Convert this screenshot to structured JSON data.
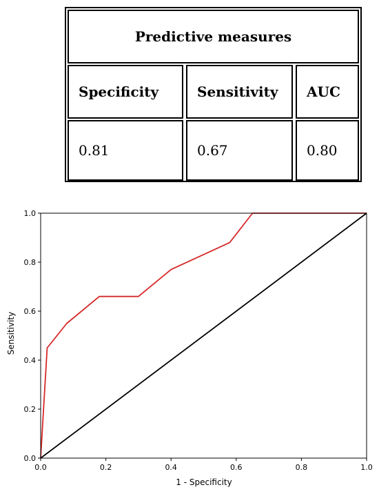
{
  "table": {
    "title": "Predictive measures",
    "headers": [
      "Specificity",
      "Sensitivity",
      "AUC"
    ],
    "values": [
      "0.81",
      "0.67",
      "0.80"
    ]
  },
  "chart_data": {
    "type": "line",
    "title": "",
    "xlabel": "1 - Specificity",
    "ylabel": "Sensitivity",
    "xlim": [
      0.0,
      1.0
    ],
    "ylim": [
      0.0,
      1.0
    ],
    "xticks": [
      "0.0",
      "0.2",
      "0.4",
      "0.6",
      "0.8",
      "1.0"
    ],
    "yticks": [
      "0.0",
      "0.2",
      "0.4",
      "0.6",
      "0.8",
      "1.0"
    ],
    "grid": false,
    "series": [
      {
        "color": "#d62728",
        "x": [
          0.0,
          0.02,
          0.08,
          0.18,
          0.3,
          0.4,
          0.58,
          0.65,
          1.0
        ],
        "y": [
          0.0,
          0.45,
          0.55,
          0.66,
          0.66,
          0.77,
          0.88,
          1.0,
          1.0
        ]
      },
      {
        "color": "#000000",
        "x": [
          0.0,
          1.0
        ],
        "y": [
          0.0,
          1.0
        ]
      }
    ]
  }
}
